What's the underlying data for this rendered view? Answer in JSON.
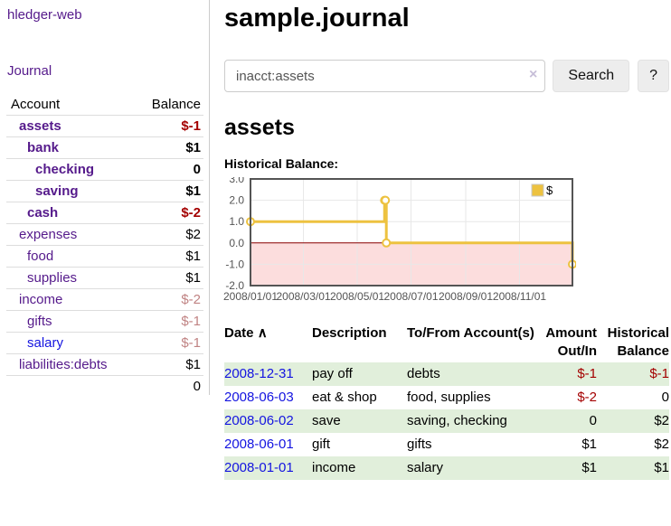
{
  "app": {
    "title": "hledger-web"
  },
  "nav": {
    "journal": "Journal"
  },
  "sidebar": {
    "header": {
      "account": "Account",
      "balance": "Balance"
    },
    "accounts": [
      {
        "name": "assets",
        "depth": 0,
        "bold": true,
        "link": "purple",
        "balance": "$-1",
        "balance_style": "neg-strong"
      },
      {
        "name": "bank",
        "depth": 1,
        "bold": true,
        "link": "purple",
        "balance": "$1",
        "balance_style": "pos"
      },
      {
        "name": "checking",
        "depth": 2,
        "bold": true,
        "link": "purple",
        "balance": "0",
        "balance_style": "pos"
      },
      {
        "name": "saving",
        "depth": 2,
        "bold": true,
        "link": "purple",
        "balance": "$1",
        "balance_style": "pos"
      },
      {
        "name": "cash",
        "depth": 1,
        "bold": true,
        "link": "purple",
        "balance": "$-2",
        "balance_style": "neg-strong"
      },
      {
        "name": "expenses",
        "depth": 0,
        "bold": false,
        "link": "purple",
        "balance": "$2",
        "balance_style": "pos"
      },
      {
        "name": "food",
        "depth": 1,
        "bold": false,
        "link": "purple",
        "balance": "$1",
        "balance_style": "pos"
      },
      {
        "name": "supplies",
        "depth": 1,
        "bold": false,
        "link": "purple",
        "balance": "$1",
        "balance_style": "pos"
      },
      {
        "name": "income",
        "depth": 0,
        "bold": false,
        "link": "purple",
        "balance": "$-2",
        "balance_style": "neg-muted"
      },
      {
        "name": "gifts",
        "depth": 1,
        "bold": false,
        "link": "purple",
        "balance": "$-1",
        "balance_style": "neg-muted"
      },
      {
        "name": "salary",
        "depth": 1,
        "bold": false,
        "link": "blue",
        "balance": "$-1",
        "balance_style": "neg-muted"
      },
      {
        "name": "liabilities:debts",
        "depth": 0,
        "bold": false,
        "link": "purple",
        "balance": "$1",
        "balance_style": "pos"
      }
    ],
    "total": "0"
  },
  "header": {
    "title": "sample.journal"
  },
  "search": {
    "value": "inacct:assets",
    "clear_icon": "×",
    "search_button": "Search",
    "help_button": "?"
  },
  "main": {
    "account_title": "assets",
    "chart_label": "Historical Balance:"
  },
  "chart_data": {
    "type": "line",
    "title": "Historical Balance of assets",
    "step": true,
    "legend": "$",
    "legend_position": "top-right",
    "grid": true,
    "line_color": "#edc240",
    "marker_fill": "#ffffff",
    "negative_region_fill": "#fcdddd",
    "zero_line_color": "#8b0000",
    "border_color": "#545454",
    "grid_color": "#e7e7e7",
    "tick_color": "#545454",
    "xlim": [
      "2008-01-01",
      "2008-12-31"
    ],
    "ylim": [
      -2,
      3
    ],
    "y_ticks": [
      "3.0",
      "2.0",
      "1.0",
      "0.0",
      "-1.0",
      "-2.0"
    ],
    "x_ticks": [
      {
        "label": "2008/01/01",
        "date": "2008-01-01"
      },
      {
        "label": "2008/03/01",
        "date": "2008-03-01"
      },
      {
        "label": "2008/05/01",
        "date": "2008-05-01"
      },
      {
        "label": "2008/07/01",
        "date": "2008-07-01"
      },
      {
        "label": "2008/09/01",
        "date": "2008-09-01"
      },
      {
        "label": "2008/11/01",
        "date": "2008-11-01"
      }
    ],
    "series": [
      {
        "name": "$",
        "points": [
          {
            "date": "2008-01-01",
            "value": 1
          },
          {
            "date": "2008-06-01",
            "value": 2
          },
          {
            "date": "2008-06-02",
            "value": 2
          },
          {
            "date": "2008-06-03",
            "value": 0
          },
          {
            "date": "2008-12-31",
            "value": -1
          }
        ]
      }
    ]
  },
  "register": {
    "columns": {
      "date": "Date",
      "description": "Description",
      "accounts": "To/From Account(s)",
      "amount": "Amount Out/In",
      "balance": "Historical Balance"
    },
    "sort_icon": "∧",
    "rows": [
      {
        "date": "2008-12-31",
        "description": "pay off",
        "accounts": "debts",
        "amount": "$-1",
        "amount_neg": true,
        "balance": "$-1",
        "balance_neg": true
      },
      {
        "date": "2008-06-03",
        "description": "eat & shop",
        "accounts": "food, supplies",
        "amount": "$-2",
        "amount_neg": true,
        "balance": "0",
        "balance_neg": false
      },
      {
        "date": "2008-06-02",
        "description": "save",
        "accounts": "saving, checking",
        "amount": "0",
        "amount_neg": false,
        "balance": "$2",
        "balance_neg": false
      },
      {
        "date": "2008-06-01",
        "description": "gift",
        "accounts": "gifts",
        "amount": "$1",
        "amount_neg": false,
        "balance": "$2",
        "balance_neg": false
      },
      {
        "date": "2008-01-01",
        "description": "income",
        "accounts": "salary",
        "amount": "$1",
        "amount_neg": false,
        "balance": "$1",
        "balance_neg": false
      }
    ]
  }
}
